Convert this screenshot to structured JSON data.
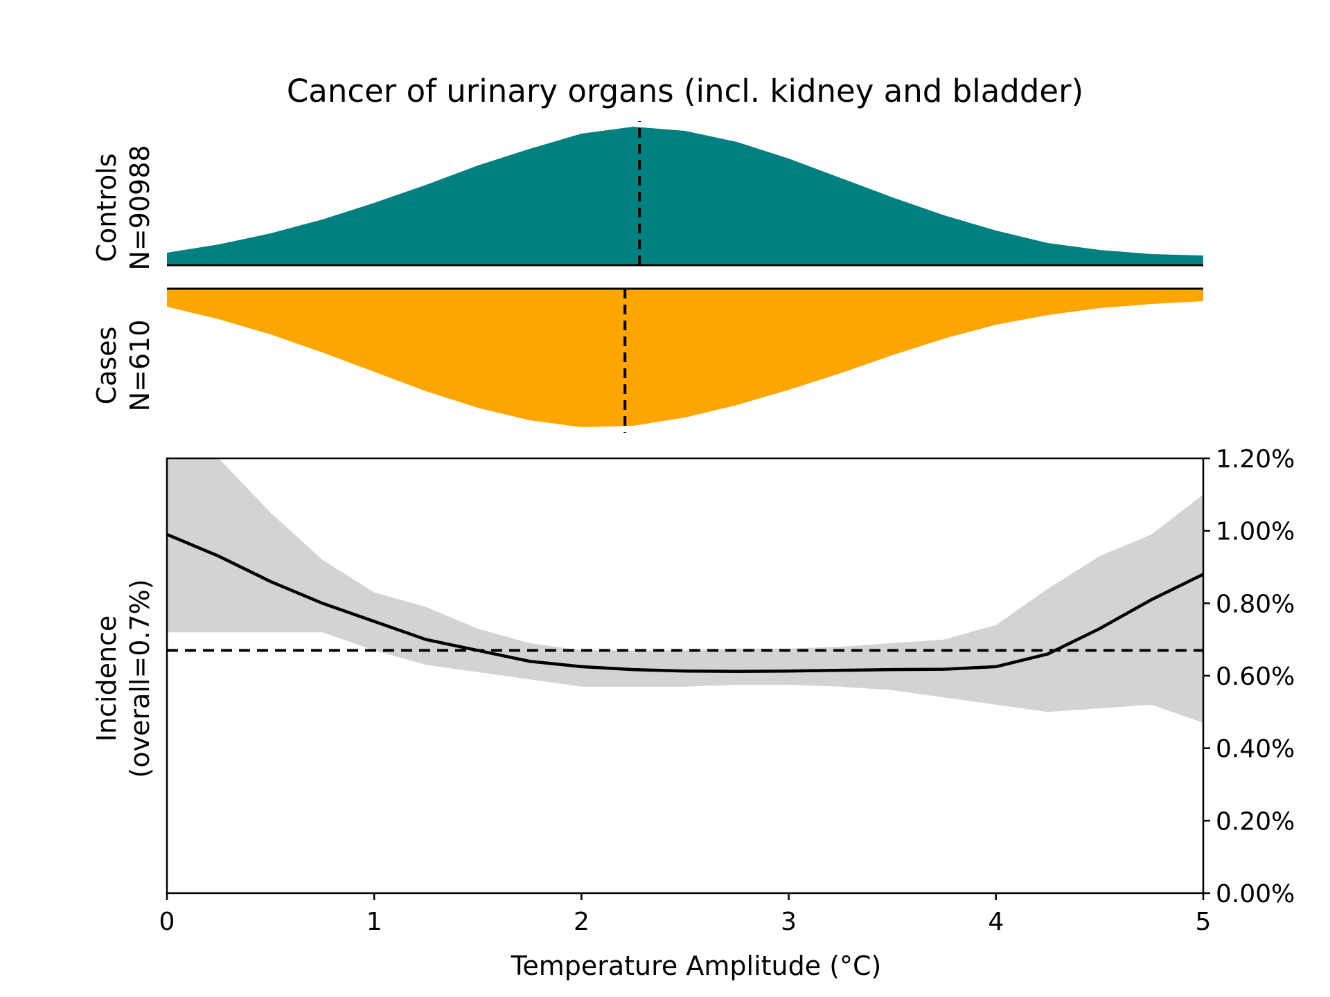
{
  "chart_data": {
    "type": "line",
    "title": "Cancer of urinary organs (incl. kidney and bladder)",
    "xlabel": "Temperature Amplitude (°C)",
    "xlim": [
      0,
      5
    ],
    "x_ticks": [
      "0",
      "1",
      "2",
      "3",
      "4",
      "5"
    ],
    "distributions": [
      {
        "name": "Controls",
        "n_label": "N=90988",
        "color": "#008080",
        "median": 2.28,
        "density": {
          "x": [
            0,
            0.25,
            0.5,
            0.75,
            1.0,
            1.25,
            1.5,
            1.75,
            2.0,
            2.25,
            2.5,
            2.75,
            3.0,
            3.25,
            3.5,
            3.75,
            4.0,
            4.25,
            4.5,
            4.75,
            5.0
          ],
          "y": [
            0.09,
            0.15,
            0.23,
            0.33,
            0.45,
            0.58,
            0.72,
            0.84,
            0.95,
            1.0,
            0.97,
            0.89,
            0.77,
            0.63,
            0.49,
            0.36,
            0.25,
            0.16,
            0.11,
            0.08,
            0.07
          ]
        }
      },
      {
        "name": "Cases",
        "n_label": "N=610",
        "color": "#FFA500",
        "median": 2.21,
        "density": {
          "x": [
            0,
            0.25,
            0.5,
            0.75,
            1.0,
            1.25,
            1.5,
            1.75,
            2.0,
            2.25,
            2.5,
            2.75,
            3.0,
            3.25,
            3.5,
            3.75,
            4.0,
            4.25,
            4.5,
            4.75,
            5.0
          ],
          "y": [
            0.13,
            0.22,
            0.33,
            0.46,
            0.6,
            0.74,
            0.86,
            0.95,
            1.0,
            0.99,
            0.93,
            0.84,
            0.73,
            0.61,
            0.48,
            0.36,
            0.26,
            0.19,
            0.14,
            0.11,
            0.09
          ]
        }
      }
    ],
    "incidence": {
      "ylabel_line1": "Incidence",
      "ylabel_line2": "(overall=0.7%)",
      "ylim": [
        0,
        1.2
      ],
      "y_ticks": [
        "0.00%",
        "0.20%",
        "0.40%",
        "0.60%",
        "0.80%",
        "1.00%",
        "1.20%"
      ],
      "overall": 0.67,
      "x": [
        0,
        0.25,
        0.5,
        0.75,
        1.0,
        1.25,
        1.5,
        1.75,
        2.0,
        2.25,
        2.5,
        2.75,
        3.0,
        3.25,
        3.5,
        3.75,
        4.0,
        4.25,
        4.5,
        4.75,
        5.0
      ],
      "y": [
        0.99,
        0.93,
        0.86,
        0.8,
        0.75,
        0.7,
        0.67,
        0.64,
        0.625,
        0.617,
        0.613,
        0.612,
        0.613,
        0.615,
        0.617,
        0.618,
        0.625,
        0.66,
        0.73,
        0.81,
        0.88
      ],
      "ci_lower": [
        0.72,
        0.72,
        0.72,
        0.72,
        0.67,
        0.63,
        0.61,
        0.59,
        0.57,
        0.57,
        0.57,
        0.575,
        0.575,
        0.57,
        0.56,
        0.54,
        0.52,
        0.5,
        0.51,
        0.52,
        0.47
      ],
      "ci_upper": [
        1.2,
        1.2,
        1.05,
        0.92,
        0.83,
        0.79,
        0.73,
        0.69,
        0.67,
        0.67,
        0.67,
        0.675,
        0.675,
        0.68,
        0.69,
        0.7,
        0.74,
        0.84,
        0.93,
        0.99,
        1.1
      ],
      "line_color": "#000000",
      "band_color": "#d3d3d3"
    }
  }
}
